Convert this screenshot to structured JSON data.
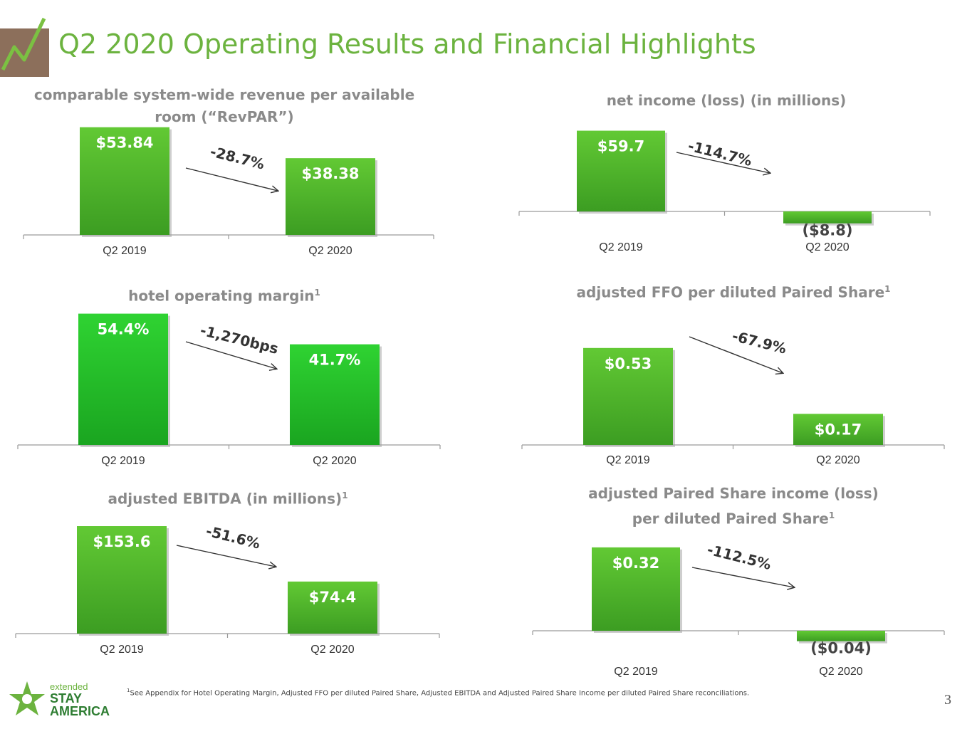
{
  "title": "Q2 2020 Operating Results and Financial Highlights",
  "footnote": "See Appendix for Hotel Operating Margin, Adjusted FFO per diluted Paired Share, Adjusted EBITDA and Adjusted Paired Share Income per diluted Paired Share reconciliations.",
  "footnote_mark": "1",
  "page_number": "3",
  "brand": {
    "line1": "extended",
    "line2": "STAY",
    "line3": "AMERICA"
  },
  "colors": {
    "accent": "#6cb33f",
    "bar": "#5dbb2c",
    "bar_bright": "#27c72a",
    "title_gray": "#8a8a8a",
    "logo_bg": "#8c6f5b"
  },
  "chart_data": [
    {
      "id": "revpar",
      "type": "bar",
      "title_line1": "comparable system-wide revenue per available",
      "title_line2": "room (“RevPAR”)",
      "footnote_mark": "",
      "categories": [
        "Q2 2019",
        "Q2 2020"
      ],
      "values": [
        53.84,
        38.38
      ],
      "labels": [
        "$53.84",
        "$38.38"
      ],
      "change": "-28.7%",
      "ylim": [
        0,
        60
      ]
    },
    {
      "id": "net_income",
      "type": "bar",
      "title_line1": "net income (loss) (in millions)",
      "title_line2": "",
      "footnote_mark": "",
      "categories": [
        "Q2 2019",
        "Q2 2020"
      ],
      "values": [
        59.7,
        -8.8
      ],
      "labels": [
        "$59.7",
        "($8.8)"
      ],
      "change": "-114.7%",
      "ylim": [
        -10,
        65
      ]
    },
    {
      "id": "hotel_margin",
      "type": "bar",
      "title_line1": "hotel operating margin",
      "title_line2": "",
      "footnote_mark": "1",
      "categories": [
        "Q2 2019",
        "Q2 2020"
      ],
      "values": [
        54.4,
        41.7
      ],
      "labels": [
        "54.4%",
        "41.7%"
      ],
      "change": "-1,270bps",
      "ylim": [
        0,
        60
      ]
    },
    {
      "id": "adj_ffo",
      "type": "bar",
      "title_line1": "adjusted FFO per diluted Paired Share",
      "title_line2": "",
      "footnote_mark": "1",
      "categories": [
        "Q2 2019",
        "Q2 2020"
      ],
      "values": [
        0.53,
        0.17
      ],
      "labels": [
        "$0.53",
        "$0.17"
      ],
      "change": "-67.9%",
      "ylim": [
        0,
        0.8
      ]
    },
    {
      "id": "adj_ebitda",
      "type": "bar",
      "title_line1": "adjusted EBITDA  (in millions)",
      "title_line2": "",
      "footnote_mark": "1",
      "categories": [
        "Q2 2019",
        "Q2 2020"
      ],
      "values": [
        153.6,
        74.4
      ],
      "labels": [
        "$153.6",
        "$74.4"
      ],
      "change": "-51.6%",
      "ylim": [
        0,
        170
      ]
    },
    {
      "id": "adj_paired_income",
      "type": "bar",
      "title_line1": "adjusted Paired Share income (loss)",
      "title_line2": "per diluted Paired Share",
      "footnote_mark": "1",
      "categories": [
        "Q2 2019",
        "Q2 2020"
      ],
      "values": [
        0.32,
        -0.04
      ],
      "labels": [
        "$0.32",
        "($0.04)"
      ],
      "change": "-112.5%",
      "ylim": [
        -0.05,
        0.4
      ]
    }
  ]
}
